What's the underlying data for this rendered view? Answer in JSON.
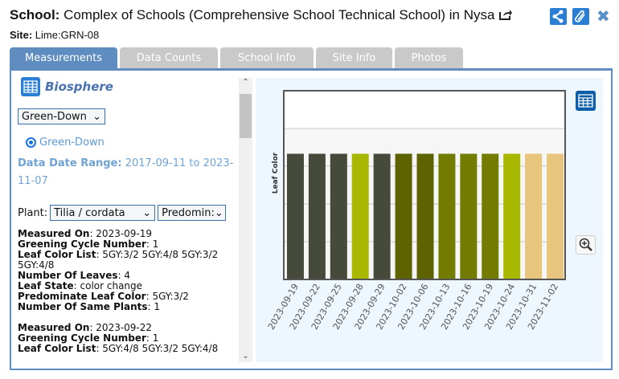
{
  "header": {
    "school_label": "School:",
    "school_name": "Complex of Schools (Comprehensive School Technical School) in Nysa",
    "site_label": "Site:",
    "site_value": "Lime:GRN-08"
  },
  "tabs": [
    {
      "label": "Measurements",
      "active": true
    },
    {
      "label": "Data Counts"
    },
    {
      "label": "School Info"
    },
    {
      "label": "Site Info"
    },
    {
      "label": "Photos"
    }
  ],
  "left": {
    "section": "Biosphere",
    "protocol_select": "Green-Down",
    "radio_label": "Green-Down",
    "range_label": "Data Date Range:",
    "range_value": "2017-09-11 to 2023-11-07",
    "plant_label": "Plant:",
    "plant_select": "Tilia / cordata",
    "attr_select": "Predomin:",
    "records": [
      [
        [
          "Measured On",
          "2023-09-19"
        ],
        [
          "Greening Cycle Number",
          "1"
        ],
        [
          "Leaf Color List",
          "5GY:3/2 5GY:4/8 5GY:3/2 5GY:4/8"
        ],
        [
          "Number Of Leaves",
          "4"
        ],
        [
          "Leaf State",
          "color change"
        ],
        [
          "Predominate Leaf Color",
          "5GY:3/2"
        ],
        [
          "Number Of Same Plants",
          "1"
        ]
      ],
      [
        [
          "Measured On",
          "2023-09-22"
        ],
        [
          "Greening Cycle Number",
          "1"
        ],
        [
          "Leaf Color List",
          "5GY:4/8 5GY:3/2 5GY:4/8"
        ]
      ]
    ]
  },
  "chart_data": {
    "type": "bar",
    "ylabel": "Leaf Color",
    "xlabel": "",
    "ylim": [
      0,
      5
    ],
    "grid": true,
    "categories": [
      "2023-09-19",
      "2023-09-22",
      "2023-09-25",
      "2023-09-28",
      "2023-09-29",
      "2023-10-02",
      "2023-10-06",
      "2023-10-13",
      "2023-10-16",
      "2023-10-19",
      "2023-10-24",
      "2023-10-31",
      "2023-11-02"
    ],
    "values": [
      3.33,
      3.33,
      3.33,
      3.33,
      3.33,
      3.33,
      3.33,
      3.33,
      3.33,
      3.33,
      3.33,
      3.33,
      3.33
    ],
    "colors": [
      "#464a3a",
      "#464a3a",
      "#464a3a",
      "#a8b800",
      "#464a3a",
      "#5e6200",
      "#5e6200",
      "#747c00",
      "#747c00",
      "#747c00",
      "#a8b800",
      "#e8c57c",
      "#e8c57c"
    ]
  }
}
